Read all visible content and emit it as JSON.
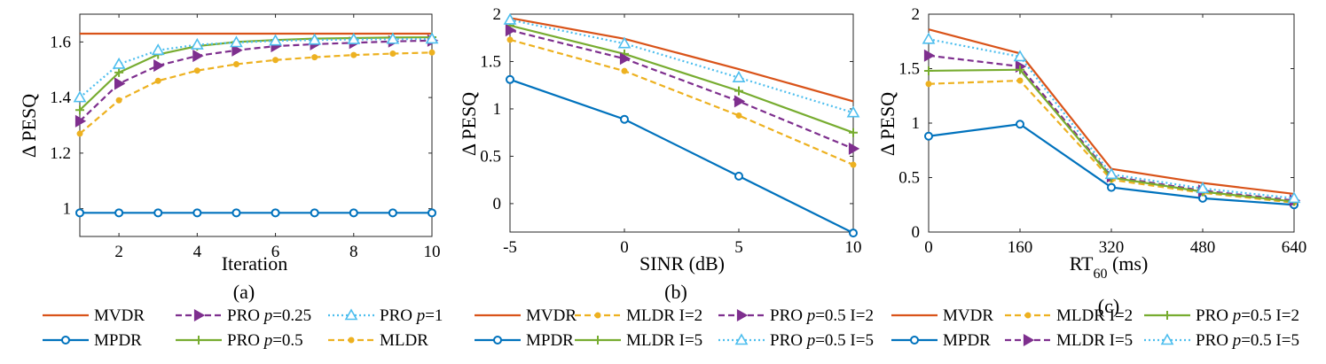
{
  "colors": {
    "MVDR": "#D95319",
    "MPDR": "#0072BD",
    "PRO": "#7E2F8E",
    "PRO_05": "#77AC30",
    "PRO_1": "#4DBEEE",
    "MLDR": "#EDB120"
  },
  "chart_data": [
    {
      "type": "line",
      "panel_label": "(a)",
      "xlabel": "Iteration",
      "ylabel": "Δ PESQ",
      "xlim": [
        1,
        10
      ],
      "ylim": [
        0.9,
        1.7
      ],
      "xticks": [
        2,
        4,
        6,
        8,
        10
      ],
      "xtick_labels": [
        "2",
        "4",
        "6",
        "8",
        "10"
      ],
      "yticks": [
        1,
        1.2,
        1.4,
        1.6
      ],
      "ytick_labels": [
        "1",
        "1.2",
        "1.4",
        "1.6"
      ],
      "x": [
        1,
        2,
        3,
        4,
        5,
        6,
        7,
        8,
        9,
        10
      ],
      "series": [
        {
          "name": "MVDR",
          "label": "MVDR",
          "color": "#D95319",
          "dash": "",
          "marker": "none",
          "values": [
            1.63,
            1.63,
            1.63,
            1.63,
            1.63,
            1.63,
            1.63,
            1.63,
            1.63,
            1.63
          ]
        },
        {
          "name": "MPDR",
          "label": "MPDR",
          "color": "#0072BD",
          "dash": "",
          "marker": "circle",
          "values": [
            0.985,
            0.985,
            0.985,
            0.985,
            0.985,
            0.985,
            0.985,
            0.985,
            0.985,
            0.985
          ]
        },
        {
          "name": "PRO p=0.25",
          "label_prefix": "PRO ",
          "label_italic": "p",
          "label_suffix": "=0.25",
          "color": "#7E2F8E",
          "dash": "7,4",
          "marker": "tri-right",
          "values": [
            1.315,
            1.45,
            1.515,
            1.55,
            1.57,
            1.585,
            1.592,
            1.597,
            1.602,
            1.605
          ]
        },
        {
          "name": "PRO p=0.5",
          "label_prefix": "PRO ",
          "label_italic": "p",
          "label_suffix": "=0.5",
          "color": "#77AC30",
          "dash": "",
          "marker": "plus",
          "values": [
            1.355,
            1.49,
            1.555,
            1.585,
            1.6,
            1.607,
            1.612,
            1.614,
            1.616,
            1.617
          ]
        },
        {
          "name": "PRO p=1",
          "label_prefix": "PRO ",
          "label_italic": "p",
          "label_suffix": "=1",
          "color": "#4DBEEE",
          "dash": "2,3",
          "marker": "tri-up",
          "values": [
            1.4,
            1.52,
            1.57,
            1.59,
            1.598,
            1.604,
            1.607,
            1.609,
            1.61,
            1.611
          ]
        },
        {
          "name": "MLDR",
          "label": "MLDR",
          "color": "#EDB120",
          "dash": "7,4",
          "marker": "dot",
          "values": [
            1.27,
            1.39,
            1.46,
            1.497,
            1.52,
            1.535,
            1.545,
            1.553,
            1.558,
            1.562
          ]
        }
      ],
      "legend": {
        "columns": 3,
        "order": [
          "MVDR",
          "MPDR",
          "PRO p=0.25",
          "PRO p=0.5",
          "PRO p=1",
          "MLDR"
        ]
      }
    },
    {
      "type": "line",
      "panel_label": "(b)",
      "xlabel": "SINR (dB)",
      "ylabel": "Δ PESQ",
      "xlim": [
        -5,
        10
      ],
      "ylim": [
        -0.3,
        2
      ],
      "xticks": [
        -5,
        0,
        5,
        10
      ],
      "xtick_labels": [
        "-5",
        "0",
        "5",
        "10"
      ],
      "yticks": [
        0,
        0.5,
        1,
        1.5,
        2
      ],
      "ytick_labels": [
        "0",
        "0.5",
        "1",
        "1.5",
        "2"
      ],
      "x": [
        -5,
        0,
        5,
        10
      ],
      "series": [
        {
          "name": "MVDR",
          "label": "MVDR",
          "color": "#D95319",
          "dash": "",
          "marker": "none",
          "values": [
            1.96,
            1.74,
            1.42,
            1.08
          ]
        },
        {
          "name": "MPDR",
          "label": "MPDR",
          "color": "#0072BD",
          "dash": "",
          "marker": "circle",
          "values": [
            1.31,
            0.89,
            0.29,
            -0.31
          ]
        },
        {
          "name": "MLDR I=2",
          "label": "MLDR I=2",
          "color": "#EDB120",
          "dash": "7,4",
          "marker": "dot",
          "values": [
            1.73,
            1.4,
            0.93,
            0.41
          ]
        },
        {
          "name": "MLDR I=5",
          "label": "MLDR I=5",
          "color": "#77AC30",
          "dash": "",
          "marker": "plus",
          "values": [
            1.88,
            1.58,
            1.19,
            0.75
          ]
        },
        {
          "name": "PRO p=0.5 I=2",
          "label_prefix": "PRO ",
          "label_italic": "p",
          "label_suffix": "=0.5 I=2",
          "color": "#7E2F8E",
          "dash": "7,4",
          "marker": "tri-right",
          "values": [
            1.83,
            1.53,
            1.08,
            0.58
          ]
        },
        {
          "name": "PRO p=0.5 I=5",
          "label_prefix": "PRO ",
          "label_italic": "p",
          "label_suffix": "=0.5 I=5",
          "color": "#4DBEEE",
          "dash": "2,3",
          "marker": "tri-up",
          "values": [
            1.94,
            1.69,
            1.33,
            0.96
          ]
        }
      ],
      "legend": {
        "columns": 3,
        "order": [
          "MVDR",
          "MPDR",
          "MLDR I=2",
          "MLDR I=5",
          "PRO p=0.5 I=2",
          "PRO p=0.5 I=5"
        ]
      }
    },
    {
      "type": "line",
      "panel_label": "(c)",
      "xlabel_main": "RT",
      "xlabel_sub": "60",
      "xlabel_suffix": " (ms)",
      "ylabel": "Δ PESQ",
      "xlim": [
        0,
        640
      ],
      "ylim": [
        0,
        2
      ],
      "xticks": [
        0,
        160,
        320,
        480,
        640
      ],
      "xtick_labels": [
        "0",
        "160",
        "320",
        "480",
        "640"
      ],
      "yticks": [
        0,
        0.5,
        1,
        1.5,
        2
      ],
      "ytick_labels": [
        "0",
        "0.5",
        "1",
        "1.5",
        "2"
      ],
      "x": [
        0,
        160,
        320,
        480,
        640
      ],
      "series": [
        {
          "name": "MVDR",
          "label": "MVDR",
          "color": "#D95319",
          "dash": "",
          "marker": "none",
          "values": [
            1.86,
            1.64,
            0.58,
            0.45,
            0.35
          ]
        },
        {
          "name": "MPDR",
          "label": "MPDR",
          "color": "#0072BD",
          "dash": "",
          "marker": "circle",
          "values": [
            0.88,
            0.99,
            0.41,
            0.31,
            0.25
          ]
        },
        {
          "name": "MLDR I=2",
          "label": "MLDR I=2",
          "color": "#EDB120",
          "dash": "7,4",
          "marker": "dot",
          "values": [
            1.36,
            1.39,
            0.48,
            0.36,
            0.27
          ]
        },
        {
          "name": "MLDR I=5",
          "label": "MLDR I=5",
          "color": "#7E2F8E",
          "dash": "7,4",
          "marker": "tri-right",
          "values": [
            1.62,
            1.52,
            0.51,
            0.38,
            0.29
          ]
        },
        {
          "name": "PRO p=0.5 I=2",
          "label_prefix": "PRO ",
          "label_italic": "p",
          "label_suffix": "=0.5 I=2",
          "color": "#77AC30",
          "dash": "",
          "marker": "plus",
          "values": [
            1.48,
            1.49,
            0.5,
            0.37,
            0.28
          ]
        },
        {
          "name": "PRO p=0.5 I=5",
          "label_prefix": "PRO ",
          "label_italic": "p",
          "label_suffix": "=0.5 I=5",
          "color": "#4DBEEE",
          "dash": "2,3",
          "marker": "tri-up",
          "values": [
            1.77,
            1.61,
            0.53,
            0.4,
            0.31
          ]
        }
      ],
      "legend": {
        "columns": 3,
        "order": [
          "MVDR",
          "MPDR",
          "MLDR I=2",
          "MLDR I=5",
          "PRO p=0.5 I=2",
          "PRO p=0.5 I=5"
        ]
      }
    }
  ]
}
